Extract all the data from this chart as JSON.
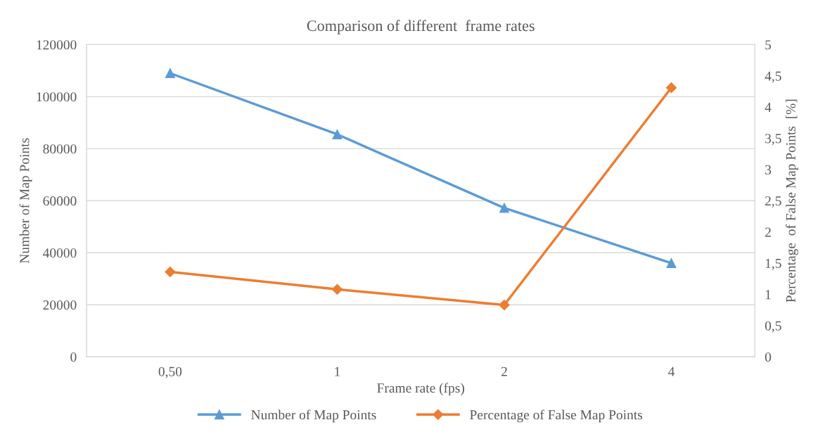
{
  "chart_data": {
    "type": "line",
    "title": "Comparison of different  frame rates",
    "xlabel": "Frame rate (fps)",
    "ylabel": "Number of Map Points",
    "y2label": "Percentage  of False Map Points  [%]",
    "categories": [
      "0,50",
      "1",
      "2",
      "4"
    ],
    "series": [
      {
        "name": "Number of Map Points",
        "color": "#5b9bd5",
        "marker": "triangle",
        "values": [
          109000,
          85500,
          57200,
          36000
        ]
      },
      {
        "name": "Percentage of False Map Points",
        "color": "#ed7d31",
        "marker": "diamond",
        "axis": "y2",
        "values": [
          1.36,
          1.08,
          0.83,
          4.31
        ]
      }
    ],
    "ylim": [
      0,
      120000
    ],
    "yticks": [
      0,
      20000,
      40000,
      60000,
      80000,
      100000,
      120000
    ],
    "y2lim": [
      0,
      5
    ],
    "y2ticks": [
      0,
      {
        "value": 0.5,
        "label": "0,5"
      },
      1,
      {
        "value": 1.5,
        "label": "1,5"
      },
      2,
      {
        "value": 2.5,
        "label": "2,5"
      },
      3,
      {
        "value": 3.5,
        "label": "3,5"
      },
      4,
      {
        "value": 4.5,
        "label": "4,5"
      },
      5
    ],
    "grid": "y",
    "legend": "bottom",
    "line_style": "solid"
  }
}
